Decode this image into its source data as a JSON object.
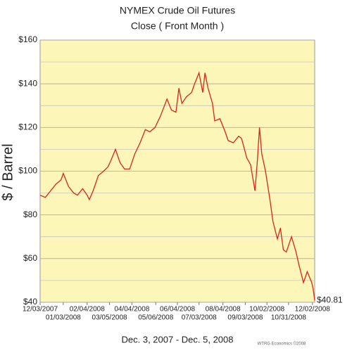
{
  "chart_data": {
    "type": "line",
    "title": "NYMEX Crude Oil Futures",
    "subtitle": "Close ( Front Month )",
    "x_label": "Dec. 3, 2007 - Dec. 5, 2008",
    "y_label": "$ / Barrel",
    "credit": "WTRG Economics ©2008",
    "annotations": [
      {
        "text": "$40.81"
      }
    ],
    "xlim": [
      "2007-12-03",
      "2008-12-05"
    ],
    "xticks": [
      {
        "value": "2007-12-03",
        "label": "12/03/2007"
      },
      {
        "value": "2008-01-03",
        "label": "01/03/2008"
      },
      {
        "value": "2008-02-04",
        "label": "02/04/2008"
      },
      {
        "value": "2008-03-05",
        "label": "03/05/2008"
      },
      {
        "value": "2008-04-04",
        "label": "04/04/2008"
      },
      {
        "value": "2008-05-06",
        "label": "05/06/2008"
      },
      {
        "value": "2008-06-04",
        "label": "06/04/2008"
      },
      {
        "value": "2008-07-03",
        "label": "07/03/2008"
      },
      {
        "value": "2008-08-04",
        "label": "08/04/2008"
      },
      {
        "value": "2008-09-03",
        "label": "09/03/2008"
      },
      {
        "value": "2008-10-02",
        "label": "10/02/2008"
      },
      {
        "value": "2008-10-31",
        "label": "10/31/2008"
      },
      {
        "value": "2008-12-02",
        "label": "12/02/2008"
      }
    ],
    "ylim": [
      40,
      160
    ],
    "yticks": [
      {
        "value": 40,
        "label": "$40"
      },
      {
        "value": 60,
        "label": "$60"
      },
      {
        "value": 80,
        "label": "$80"
      },
      {
        "value": 100,
        "label": "$100"
      },
      {
        "value": 120,
        "label": "$120"
      },
      {
        "value": 140,
        "label": "$140"
      },
      {
        "value": 160,
        "label": "$160"
      }
    ],
    "minor_yticks": [
      50,
      70,
      90,
      110,
      130,
      150
    ],
    "grid": true,
    "background": "#fcf6b8",
    "x": [
      "2007-12-03",
      "2007-12-10",
      "2007-12-17",
      "2007-12-24",
      "2007-12-31",
      "2008-01-03",
      "2008-01-10",
      "2008-01-17",
      "2008-01-22",
      "2008-01-29",
      "2008-02-04",
      "2008-02-07",
      "2008-02-12",
      "2008-02-19",
      "2008-02-26",
      "2008-03-03",
      "2008-03-07",
      "2008-03-13",
      "2008-03-19",
      "2008-03-25",
      "2008-04-01",
      "2008-04-08",
      "2008-04-15",
      "2008-04-22",
      "2008-04-28",
      "2008-05-05",
      "2008-05-12",
      "2008-05-21",
      "2008-05-27",
      "2008-06-02",
      "2008-06-06",
      "2008-06-10",
      "2008-06-16",
      "2008-06-23",
      "2008-06-27",
      "2008-07-03",
      "2008-07-08",
      "2008-07-11",
      "2008-07-15",
      "2008-07-21",
      "2008-07-24",
      "2008-07-31",
      "2008-08-07",
      "2008-08-11",
      "2008-08-18",
      "2008-08-25",
      "2008-08-29",
      "2008-09-05",
      "2008-09-10",
      "2008-09-16",
      "2008-09-19",
      "2008-09-22",
      "2008-09-25",
      "2008-09-30",
      "2008-10-06",
      "2008-10-10",
      "2008-10-16",
      "2008-10-20",
      "2008-10-24",
      "2008-10-28",
      "2008-11-04",
      "2008-11-10",
      "2008-11-14",
      "2008-11-20",
      "2008-11-25",
      "2008-12-01",
      "2008-12-03",
      "2008-12-05"
    ],
    "series": [
      {
        "name": "Close",
        "color": "#d8261c",
        "values": [
          89,
          88,
          91,
          94,
          96,
          99,
          93,
          90,
          89,
          92,
          89,
          87,
          91,
          98,
          100,
          102,
          105,
          110,
          104,
          101,
          101,
          108,
          113,
          119,
          118,
          120,
          125,
          133,
          128,
          127,
          138,
          131,
          134,
          136,
          140,
          145,
          136,
          145,
          138,
          131,
          123,
          124,
          118,
          114,
          113,
          116,
          115,
          106,
          103,
          91,
          104,
          120,
          108,
          100,
          87,
          77,
          69,
          74,
          64,
          63,
          70,
          63,
          57,
          49,
          54,
          49,
          46,
          40.81
        ]
      }
    ]
  }
}
